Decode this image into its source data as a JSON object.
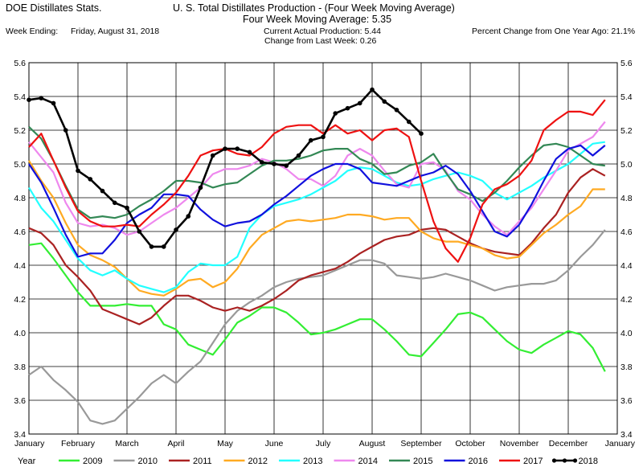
{
  "header": {
    "left_title": "DOE Distillates Stats.",
    "title": "U. S. Total Distillates Production - (Four Week Moving Average)",
    "subtitle": "Four Week Moving Average:   5.35",
    "week_label": "Week Ending:",
    "week_value": "Friday, August 31, 2018",
    "current_production": "Current Actual Production:   5.44",
    "change_last_week": "Change from Last Week:  0.26",
    "pct_change": "Percent Change from One Year Ago:  21.1%"
  },
  "legend_label": "Year",
  "chart_data": {
    "type": "line",
    "xlim": [
      0,
      12
    ],
    "ylim": [
      3.4,
      5.6
    ],
    "grid": true,
    "legend_position": "bottom",
    "x_tick_labels": [
      "January",
      "February",
      "March",
      "April",
      "May",
      "June",
      "July",
      "August",
      "September",
      "October",
      "November",
      "December",
      "January"
    ],
    "y_ticks": [
      "3.4",
      "3.6",
      "3.8",
      "4.0",
      "4.2",
      "4.4",
      "4.6",
      "4.8",
      "5.0",
      "5.2",
      "5.4",
      "5.6"
    ],
    "series": [
      {
        "name": "2009",
        "color": "#33ee33",
        "markers": false,
        "x": [
          0,
          0.25,
          0.5,
          0.75,
          1,
          1.25,
          1.5,
          1.75,
          2,
          2.25,
          2.5,
          2.75,
          3,
          3.25,
          3.5,
          3.75,
          4,
          4.25,
          4.5,
          4.75,
          5,
          5.25,
          5.5,
          5.75,
          6,
          6.25,
          6.5,
          6.75,
          7,
          7.25,
          7.5,
          7.75,
          8,
          8.25,
          8.5,
          8.75,
          9,
          9.25,
          9.5,
          9.75,
          10,
          10.25,
          10.5,
          10.75,
          11,
          11.25,
          11.5,
          11.75
        ],
        "y": [
          4.52,
          4.53,
          4.44,
          4.34,
          4.24,
          4.16,
          4.16,
          4.16,
          4.17,
          4.16,
          4.16,
          4.05,
          4.02,
          3.93,
          3.9,
          3.87,
          3.96,
          4.06,
          4.1,
          4.15,
          4.15,
          4.12,
          4.06,
          3.99,
          4.0,
          4.02,
          4.05,
          4.08,
          4.08,
          4.02,
          3.95,
          3.87,
          3.86,
          3.94,
          4.02,
          4.11,
          4.12,
          4.09,
          4.02,
          3.95,
          3.9,
          3.88,
          3.93,
          3.97,
          4.01,
          3.99,
          3.91,
          3.77
        ]
      },
      {
        "name": "2010",
        "color": "#999999",
        "markers": false,
        "x": [
          0,
          0.25,
          0.5,
          0.75,
          1,
          1.25,
          1.5,
          1.75,
          2,
          2.25,
          2.5,
          2.75,
          3,
          3.25,
          3.5,
          3.75,
          4,
          4.25,
          4.5,
          4.75,
          5,
          5.25,
          5.5,
          5.75,
          6,
          6.25,
          6.5,
          6.75,
          7,
          7.25,
          7.5,
          7.75,
          8,
          8.25,
          8.5,
          8.75,
          9,
          9.25,
          9.5,
          9.75,
          10,
          10.25,
          10.5,
          10.75,
          11,
          11.25,
          11.5,
          11.75
        ],
        "y": [
          3.75,
          3.8,
          3.72,
          3.66,
          3.59,
          3.48,
          3.46,
          3.48,
          3.55,
          3.62,
          3.7,
          3.75,
          3.7,
          3.77,
          3.83,
          3.94,
          4.05,
          4.13,
          4.18,
          4.22,
          4.27,
          4.3,
          4.32,
          4.33,
          4.34,
          4.37,
          4.4,
          4.43,
          4.43,
          4.41,
          4.34,
          4.33,
          4.32,
          4.33,
          4.35,
          4.33,
          4.31,
          4.28,
          4.25,
          4.27,
          4.28,
          4.29,
          4.29,
          4.31,
          4.37,
          4.45,
          4.52,
          4.61
        ]
      },
      {
        "name": "2011",
        "color": "#aa2222",
        "markers": false,
        "x": [
          0,
          0.25,
          0.5,
          0.75,
          1,
          1.25,
          1.5,
          1.75,
          2,
          2.25,
          2.5,
          2.75,
          3,
          3.25,
          3.5,
          3.75,
          4,
          4.25,
          4.5,
          4.75,
          5,
          5.25,
          5.5,
          5.75,
          6,
          6.25,
          6.5,
          6.75,
          7,
          7.25,
          7.5,
          7.75,
          8,
          8.25,
          8.5,
          8.75,
          9,
          9.25,
          9.5,
          9.75,
          10,
          10.25,
          10.5,
          10.75,
          11,
          11.25,
          11.5,
          11.75
        ],
        "y": [
          4.62,
          4.59,
          4.52,
          4.4,
          4.33,
          4.25,
          4.14,
          4.11,
          4.08,
          4.05,
          4.09,
          4.16,
          4.22,
          4.22,
          4.19,
          4.15,
          4.13,
          4.15,
          4.13,
          4.16,
          4.2,
          4.25,
          4.31,
          4.34,
          4.36,
          4.38,
          4.42,
          4.47,
          4.51,
          4.55,
          4.57,
          4.58,
          4.61,
          4.62,
          4.61,
          4.57,
          4.53,
          4.5,
          4.48,
          4.47,
          4.46,
          4.53,
          4.62,
          4.7,
          4.83,
          4.92,
          4.97,
          4.93
        ]
      },
      {
        "name": "2012",
        "color": "#ffaa22",
        "markers": false,
        "x": [
          0,
          0.25,
          0.5,
          0.75,
          1,
          1.25,
          1.5,
          1.75,
          2,
          2.25,
          2.5,
          2.75,
          3,
          3.25,
          3.5,
          3.75,
          4,
          4.25,
          4.5,
          4.75,
          5,
          5.25,
          5.5,
          5.75,
          6,
          6.25,
          6.5,
          6.75,
          7,
          7.25,
          7.5,
          7.75,
          8,
          8.25,
          8.5,
          8.75,
          9,
          9.25,
          9.5,
          9.75,
          10,
          10.25,
          10.5,
          10.75,
          11,
          11.25,
          11.5,
          11.75
        ],
        "y": [
          5.02,
          4.9,
          4.8,
          4.65,
          4.52,
          4.46,
          4.43,
          4.39,
          4.32,
          4.25,
          4.23,
          4.22,
          4.26,
          4.31,
          4.32,
          4.27,
          4.3,
          4.38,
          4.5,
          4.58,
          4.62,
          4.66,
          4.67,
          4.66,
          4.67,
          4.68,
          4.7,
          4.7,
          4.69,
          4.67,
          4.68,
          4.68,
          4.6,
          4.56,
          4.54,
          4.54,
          4.52,
          4.5,
          4.46,
          4.44,
          4.45,
          4.52,
          4.59,
          4.64,
          4.7,
          4.75,
          4.85,
          4.85
        ]
      },
      {
        "name": "2013",
        "color": "#22ffff",
        "markers": false,
        "x": [
          0,
          0.25,
          0.5,
          0.75,
          1,
          1.25,
          1.5,
          1.75,
          2,
          2.25,
          2.5,
          2.75,
          3,
          3.25,
          3.5,
          3.75,
          4,
          4.25,
          4.5,
          4.75,
          5,
          5.25,
          5.5,
          5.75,
          6,
          6.25,
          6.5,
          6.75,
          7,
          7.25,
          7.5,
          7.75,
          8,
          8.25,
          8.5,
          8.75,
          9,
          9.25,
          9.5,
          9.75,
          10,
          10.25,
          10.5,
          10.75,
          11,
          11.25,
          11.5,
          11.75
        ],
        "y": [
          4.86,
          4.74,
          4.66,
          4.55,
          4.44,
          4.37,
          4.34,
          4.37,
          4.32,
          4.28,
          4.26,
          4.24,
          4.27,
          4.36,
          4.41,
          4.4,
          4.4,
          4.45,
          4.62,
          4.7,
          4.75,
          4.77,
          4.79,
          4.82,
          4.86,
          4.9,
          4.96,
          4.98,
          4.97,
          4.93,
          4.89,
          4.87,
          4.88,
          4.91,
          4.93,
          4.95,
          4.93,
          4.9,
          4.83,
          4.79,
          4.83,
          4.87,
          4.92,
          4.96,
          5.0,
          5.06,
          5.12,
          5.13
        ]
      },
      {
        "name": "2014",
        "color": "#ee88ee",
        "markers": false,
        "x": [
          0,
          0.25,
          0.5,
          0.75,
          1,
          1.25,
          1.5,
          1.75,
          2,
          2.25,
          2.5,
          2.75,
          3,
          3.25,
          3.5,
          3.75,
          4,
          4.25,
          4.5,
          4.75,
          5,
          5.25,
          5.5,
          5.75,
          6,
          6.25,
          6.5,
          6.75,
          7,
          7.25,
          7.5,
          7.75,
          8,
          8.25,
          8.5,
          8.75,
          9,
          9.25,
          9.5,
          9.75,
          10,
          10.25,
          10.5,
          10.75,
          11,
          11.25,
          11.5,
          11.75
        ],
        "y": [
          5.13,
          5.04,
          4.95,
          4.77,
          4.65,
          4.63,
          4.64,
          4.62,
          4.58,
          4.6,
          4.65,
          4.7,
          4.74,
          4.8,
          4.86,
          4.94,
          4.97,
          4.97,
          4.99,
          5.03,
          5.01,
          4.97,
          4.91,
          4.91,
          4.87,
          4.93,
          5.05,
          5.09,
          5.05,
          4.96,
          4.88,
          4.86,
          5.0,
          5.01,
          4.96,
          4.84,
          4.79,
          4.7,
          4.63,
          4.58,
          4.66,
          4.74,
          4.85,
          4.96,
          5.08,
          5.12,
          5.16,
          5.25
        ]
      },
      {
        "name": "2015",
        "color": "#338855",
        "markers": false,
        "x": [
          0,
          0.25,
          0.5,
          0.75,
          1,
          1.25,
          1.5,
          1.75,
          2,
          2.25,
          2.5,
          2.75,
          3,
          3.25,
          3.5,
          3.75,
          4,
          4.25,
          4.5,
          4.75,
          5,
          5.25,
          5.5,
          5.75,
          6,
          6.25,
          6.5,
          6.75,
          7,
          7.25,
          7.5,
          7.75,
          8,
          8.25,
          8.5,
          8.75,
          9,
          9.25,
          9.5,
          9.75,
          10,
          10.25,
          10.5,
          10.75,
          11,
          11.25,
          11.5,
          11.75
        ],
        "y": [
          5.22,
          5.15,
          5.02,
          4.87,
          4.73,
          4.68,
          4.69,
          4.68,
          4.7,
          4.75,
          4.79,
          4.84,
          4.9,
          4.9,
          4.89,
          4.86,
          4.88,
          4.89,
          4.94,
          4.99,
          5.02,
          5.02,
          5.03,
          5.05,
          5.08,
          5.09,
          5.09,
          5.03,
          5.0,
          4.94,
          4.95,
          4.99,
          5.01,
          5.06,
          4.95,
          4.85,
          4.82,
          4.78,
          4.83,
          4.9,
          4.98,
          5.05,
          5.11,
          5.12,
          5.1,
          5.05,
          5.0,
          4.99
        ]
      },
      {
        "name": "2016",
        "color": "#1111dd",
        "markers": false,
        "x": [
          0,
          0.25,
          0.5,
          0.75,
          1,
          1.25,
          1.5,
          1.75,
          2,
          2.25,
          2.5,
          2.75,
          3,
          3.25,
          3.5,
          3.75,
          4,
          4.25,
          4.5,
          4.75,
          5,
          5.25,
          5.5,
          5.75,
          6,
          6.25,
          6.5,
          6.75,
          7,
          7.25,
          7.5,
          7.75,
          8,
          8.25,
          8.5,
          8.75,
          9,
          9.25,
          9.5,
          9.75,
          10,
          10.25,
          10.5,
          10.75,
          11,
          11.25,
          11.5,
          11.75
        ],
        "y": [
          5.0,
          4.89,
          4.74,
          4.58,
          4.45,
          4.47,
          4.47,
          4.55,
          4.65,
          4.7,
          4.74,
          4.82,
          4.82,
          4.81,
          4.73,
          4.67,
          4.63,
          4.65,
          4.66,
          4.7,
          4.76,
          4.81,
          4.87,
          4.93,
          4.97,
          5.0,
          5.0,
          4.97,
          4.89,
          4.88,
          4.87,
          4.9,
          4.93,
          4.95,
          4.99,
          4.94,
          4.84,
          4.72,
          4.6,
          4.57,
          4.64,
          4.76,
          4.9,
          5.03,
          5.09,
          5.11,
          5.05,
          5.11
        ]
      },
      {
        "name": "2017",
        "color": "#ee1111",
        "markers": false,
        "x": [
          0,
          0.25,
          0.5,
          0.75,
          1,
          1.25,
          1.5,
          1.75,
          2,
          2.25,
          2.5,
          2.75,
          3,
          3.25,
          3.5,
          3.75,
          4,
          4.25,
          4.5,
          4.75,
          5,
          5.25,
          5.5,
          5.75,
          6,
          6.25,
          6.5,
          6.75,
          7,
          7.25,
          7.5,
          7.75,
          8,
          8.25,
          8.5,
          8.75,
          9,
          9.25,
          9.5,
          9.75,
          10,
          10.25,
          10.5,
          10.75,
          11,
          11.25,
          11.5,
          11.75
        ],
        "y": [
          5.1,
          5.18,
          5.02,
          4.86,
          4.72,
          4.66,
          4.63,
          4.63,
          4.64,
          4.63,
          4.7,
          4.76,
          4.83,
          4.93,
          5.05,
          5.08,
          5.09,
          5.06,
          5.05,
          5.1,
          5.18,
          5.22,
          5.23,
          5.23,
          5.18,
          5.23,
          5.18,
          5.2,
          5.14,
          5.2,
          5.21,
          5.16,
          4.9,
          4.66,
          4.5,
          4.42,
          4.56,
          4.76,
          4.85,
          4.88,
          4.93,
          5.02,
          5.2,
          5.26,
          5.31,
          5.31,
          5.29,
          5.38
        ]
      },
      {
        "name": "2018",
        "color": "#000000",
        "markers": true,
        "x": [
          0,
          0.25,
          0.5,
          0.75,
          1,
          1.25,
          1.5,
          1.75,
          2,
          2.25,
          2.5,
          2.75,
          3,
          3.25,
          3.5,
          3.75,
          4,
          4.25,
          4.5,
          4.75,
          5,
          5.25,
          5.5,
          5.75,
          6,
          6.25,
          6.5,
          6.75,
          7,
          7.25,
          7.5,
          7.75,
          8
        ],
        "y": [
          5.38,
          5.39,
          5.36,
          5.2,
          4.96,
          4.91,
          4.84,
          4.77,
          4.74,
          4.6,
          4.51,
          4.51,
          4.61,
          4.69,
          4.86,
          5.05,
          5.09,
          5.09,
          5.07,
          5.01,
          5.0,
          4.99,
          5.05,
          5.14,
          5.16,
          5.3,
          5.33,
          5.36,
          5.44,
          5.37,
          5.32,
          5.25,
          5.18
        ]
      }
    ]
  }
}
